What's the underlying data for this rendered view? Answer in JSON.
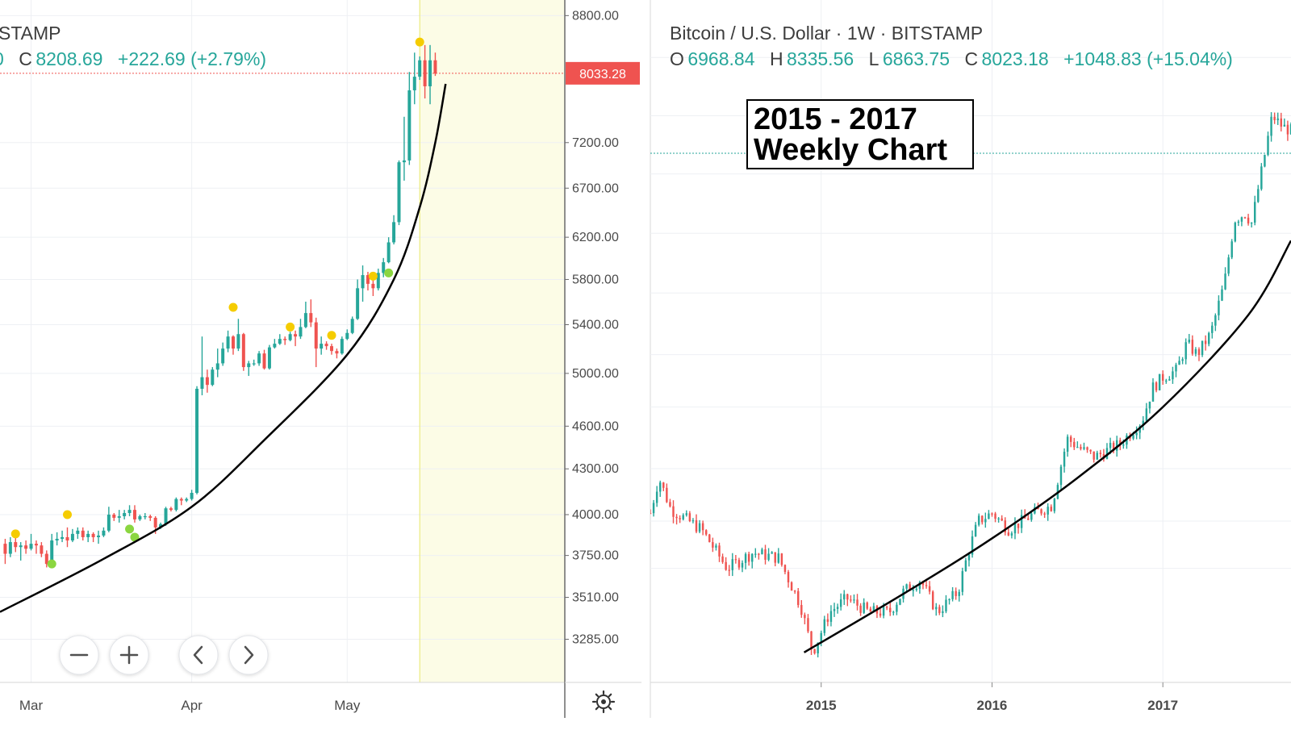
{
  "colors": {
    "up": "#26a69a",
    "down": "#ef5350",
    "highlight": "#fcfce6",
    "marker_yellow": "#f5cc00",
    "marker_green": "#8bd640",
    "curve": "#000000",
    "last_price_bg": "#ef5350"
  },
  "icons": [
    "minus-icon",
    "plus-icon",
    "chevron-left-icon",
    "chevron-right-icon",
    "gear-icon"
  ],
  "left_chart": {
    "header": {
      "title_fragment": "STAMP",
      "ohlc_fragment": "0",
      "close_label": "C",
      "close_value": "8208.69",
      "change": "+222.69 (+2.79%)"
    },
    "last_price": "8033.28",
    "controls": {
      "zoom_out": "−",
      "zoom_in": "+",
      "scroll_left": "‹",
      "scroll_right": "›"
    }
  },
  "right_chart": {
    "header": {
      "title": "Bitcoin / U.S. Dollar · 1W · BITSTAMP",
      "open_label": "O",
      "open": "6968.84",
      "high_label": "H",
      "high": "8335.56",
      "low_label": "L",
      "low": "6863.75",
      "close_label": "C",
      "close": "8023.18",
      "change": "+1048.83 (+15.04%)"
    },
    "annotation": {
      "line1": "2015 - 2017",
      "line2": "Weekly Chart"
    }
  },
  "chart_data": [
    {
      "type": "candlestick",
      "title": "",
      "y_scale": "log",
      "ylim": [
        3180,
        8860
      ],
      "y_ticks": [
        "8800.00",
        "7200.00",
        "6700.00",
        "6200.00",
        "5800.00",
        "5400.00",
        "5000.00",
        "4600.00",
        "4300.00",
        "4000.00",
        "3750.00",
        "3510.00",
        "3285.00"
      ],
      "x_ticks": [
        "Mar",
        "Apr",
        "May"
      ],
      "x_range": [
        "2019-02-23",
        "2019-06-12"
      ],
      "candles_ohlc": [
        [
          "2019-02-24",
          3820,
          3850,
          3700,
          3760
        ],
        [
          "2019-02-25",
          3760,
          3860,
          3740,
          3830
        ],
        [
          "2019-02-26",
          3830,
          3860,
          3770,
          3800
        ],
        [
          "2019-02-27",
          3800,
          3830,
          3720,
          3810
        ],
        [
          "2019-02-28",
          3810,
          3840,
          3760,
          3790
        ],
        [
          "2019-03-01",
          3790,
          3880,
          3780,
          3820
        ],
        [
          "2019-03-02",
          3820,
          3840,
          3760,
          3810
        ],
        [
          "2019-03-03",
          3810,
          3830,
          3740,
          3760
        ],
        [
          "2019-03-04",
          3760,
          3780,
          3680,
          3700
        ],
        [
          "2019-03-05",
          3700,
          3880,
          3690,
          3840
        ],
        [
          "2019-03-06",
          3840,
          3890,
          3810,
          3850
        ],
        [
          "2019-03-07",
          3850,
          3900,
          3830,
          3860
        ],
        [
          "2019-03-08",
          3860,
          3920,
          3800,
          3840
        ],
        [
          "2019-03-09",
          3840,
          3910,
          3830,
          3880
        ],
        [
          "2019-03-10",
          3880,
          3920,
          3850,
          3900
        ],
        [
          "2019-03-11",
          3900,
          3920,
          3840,
          3860
        ],
        [
          "2019-03-12",
          3860,
          3900,
          3830,
          3880
        ],
        [
          "2019-03-13",
          3880,
          3890,
          3830,
          3860
        ],
        [
          "2019-03-14",
          3860,
          3900,
          3820,
          3870
        ],
        [
          "2019-03-15",
          3870,
          3920,
          3860,
          3900
        ],
        [
          "2019-03-16",
          3900,
          4050,
          3890,
          4000
        ],
        [
          "2019-03-17",
          4000,
          4010,
          3960,
          3980
        ],
        [
          "2019-03-18",
          3980,
          4030,
          3950,
          3990
        ],
        [
          "2019-03-19",
          3990,
          4030,
          3970,
          4010
        ],
        [
          "2019-03-20",
          4010,
          4060,
          3990,
          4030
        ],
        [
          "2019-03-21",
          4030,
          4060,
          3950,
          3970
        ],
        [
          "2019-03-22",
          3970,
          4000,
          3960,
          3990
        ],
        [
          "2019-03-23",
          3990,
          4010,
          3970,
          3990
        ],
        [
          "2019-03-24",
          3990,
          4000,
          3960,
          3980
        ],
        [
          "2019-03-25",
          3980,
          3990,
          3880,
          3920
        ],
        [
          "2019-03-26",
          3920,
          3950,
          3910,
          3940
        ],
        [
          "2019-03-27",
          3940,
          4050,
          3930,
          4040
        ],
        [
          "2019-03-28",
          4040,
          4050,
          4020,
          4030
        ],
        [
          "2019-03-29",
          4030,
          4110,
          4020,
          4100
        ],
        [
          "2019-03-30",
          4100,
          4110,
          4060,
          4090
        ],
        [
          "2019-03-31",
          4090,
          4110,
          4080,
          4100
        ],
        [
          "2019-04-01",
          4100,
          4160,
          4090,
          4140
        ],
        [
          "2019-04-02",
          4140,
          4900,
          4130,
          4880
        ],
        [
          "2019-04-03",
          4880,
          5300,
          4830,
          4970
        ],
        [
          "2019-04-04",
          4970,
          5030,
          4850,
          4910
        ],
        [
          "2019-04-05",
          4910,
          5050,
          4900,
          5030
        ],
        [
          "2019-04-06",
          5030,
          5200,
          4970,
          5080
        ],
        [
          "2019-04-07",
          5080,
          5250,
          5060,
          5200
        ],
        [
          "2019-04-08",
          5200,
          5350,
          5170,
          5300
        ],
        [
          "2019-04-09",
          5300,
          5310,
          5150,
          5200
        ],
        [
          "2019-04-10",
          5200,
          5450,
          5180,
          5320
        ],
        [
          "2019-04-11",
          5320,
          5330,
          5020,
          5050
        ],
        [
          "2019-04-12",
          5050,
          5100,
          4980,
          5080
        ],
        [
          "2019-04-13",
          5080,
          5110,
          5060,
          5080
        ],
        [
          "2019-04-14",
          5080,
          5180,
          5060,
          5160
        ],
        [
          "2019-04-15",
          5160,
          5190,
          5030,
          5040
        ],
        [
          "2019-04-16",
          5040,
          5230,
          5030,
          5210
        ],
        [
          "2019-04-17",
          5210,
          5280,
          5200,
          5240
        ],
        [
          "2019-04-18",
          5240,
          5320,
          5230,
          5280
        ],
        [
          "2019-04-19",
          5280,
          5300,
          5230,
          5270
        ],
        [
          "2019-04-20",
          5270,
          5340,
          5260,
          5320
        ],
        [
          "2019-04-21",
          5320,
          5350,
          5220,
          5300
        ],
        [
          "2019-04-22",
          5300,
          5450,
          5280,
          5380
        ],
        [
          "2019-04-23",
          5380,
          5600,
          5370,
          5500
        ],
        [
          "2019-04-24",
          5500,
          5620,
          5380,
          5420
        ],
        [
          "2019-04-25",
          5420,
          5460,
          5050,
          5200
        ],
        [
          "2019-04-26",
          5200,
          5300,
          5150,
          5240
        ],
        [
          "2019-04-27",
          5240,
          5260,
          5190,
          5220
        ],
        [
          "2019-04-28",
          5220,
          5240,
          5150,
          5180
        ],
        [
          "2019-04-29",
          5180,
          5200,
          5120,
          5160
        ],
        [
          "2019-04-30",
          5160,
          5300,
          5150,
          5280
        ],
        [
          "2019-05-01",
          5280,
          5360,
          5270,
          5330
        ],
        [
          "2019-05-02",
          5330,
          5470,
          5320,
          5450
        ],
        [
          "2019-05-03",
          5450,
          5800,
          5440,
          5720
        ],
        [
          "2019-05-04",
          5720,
          5930,
          5600,
          5840
        ],
        [
          "2019-05-05",
          5840,
          5870,
          5700,
          5760
        ],
        [
          "2019-05-06",
          5760,
          5800,
          5650,
          5720
        ],
        [
          "2019-05-07",
          5720,
          5900,
          5700,
          5860
        ],
        [
          "2019-05-08",
          5860,
          6000,
          5820,
          5960
        ],
        [
          "2019-05-09",
          5960,
          6200,
          5950,
          6150
        ],
        [
          "2019-05-10",
          6150,
          6420,
          6130,
          6350
        ],
        [
          "2019-05-11",
          6350,
          7000,
          6320,
          6980
        ],
        [
          "2019-05-12",
          6980,
          7500,
          6780,
          7000
        ],
        [
          "2019-05-13",
          7000,
          8050,
          6950,
          7820
        ],
        [
          "2019-05-14",
          7820,
          8300,
          7650,
          7990
        ],
        [
          "2019-05-15",
          7990,
          8250,
          7950,
          8200
        ],
        [
          "2019-05-16",
          8200,
          8400,
          7720,
          7870
        ],
        [
          "2019-05-17",
          7870,
          8400,
          7650,
          8200
        ],
        [
          "2019-05-18",
          8200,
          8300,
          8000,
          8030
        ]
      ],
      "markers_yellow": [
        [
          "2019-02-26",
          3880
        ],
        [
          "2019-03-08",
          4000
        ],
        [
          "2019-04-09",
          5550
        ],
        [
          "2019-04-20",
          5380
        ],
        [
          "2019-04-28",
          5310
        ],
        [
          "2019-05-06",
          5830
        ],
        [
          "2019-05-15",
          8440
        ]
      ],
      "markers_green": [
        [
          "2019-03-05",
          3700
        ],
        [
          "2019-03-20",
          3910
        ],
        [
          "2019-03-21",
          3860
        ],
        [
          "2019-05-09",
          5860
        ]
      ],
      "curve": [
        [
          "2019-02-23",
          3430
        ],
        [
          "2019-03-15",
          3730
        ],
        [
          "2019-04-01",
          4050
        ],
        [
          "2019-04-15",
          4500
        ],
        [
          "2019-05-01",
          5150
        ],
        [
          "2019-05-10",
          5800
        ],
        [
          "2019-05-15",
          6500
        ],
        [
          "2019-05-18",
          7200
        ],
        [
          "2019-05-20",
          7900
        ]
      ],
      "highlight_range": [
        "2019-05-15",
        "2019-06-12"
      ]
    },
    {
      "type": "candlestick",
      "title": "Bitcoin / U.S. Dollar · 1W · BITSTAMP",
      "y_scale": "log",
      "x_ticks": [
        "2015",
        "2016",
        "2017"
      ],
      "x_range": [
        2014.0,
        2017.75
      ],
      "curve": [
        [
          2014.9,
          180
        ],
        [
          2015.5,
          260
        ],
        [
          2016.0,
          360
        ],
        [
          2016.5,
          520
        ],
        [
          2017.0,
          800
        ],
        [
          2017.5,
          1400
        ],
        [
          2017.75,
          2200
        ]
      ]
    }
  ]
}
